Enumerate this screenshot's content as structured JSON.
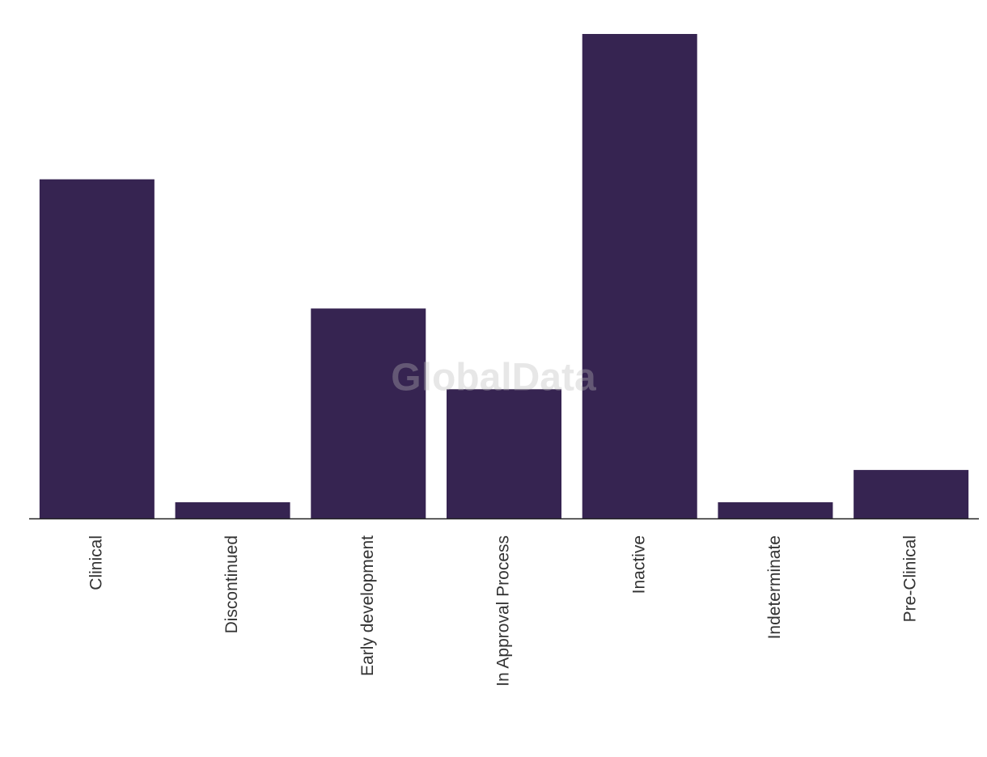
{
  "chart_data": {
    "type": "bar",
    "watermark": "GlobalData",
    "categories": [
      "Clinical",
      "Discontinued",
      "Early development",
      "In Approval Process",
      "Inactive",
      "Indeterminate",
      "Pre-Clinical"
    ],
    "values": [
      21,
      1,
      13,
      8,
      30,
      1,
      3
    ],
    "color": "#362451",
    "ylim": [
      0,
      30
    ]
  }
}
